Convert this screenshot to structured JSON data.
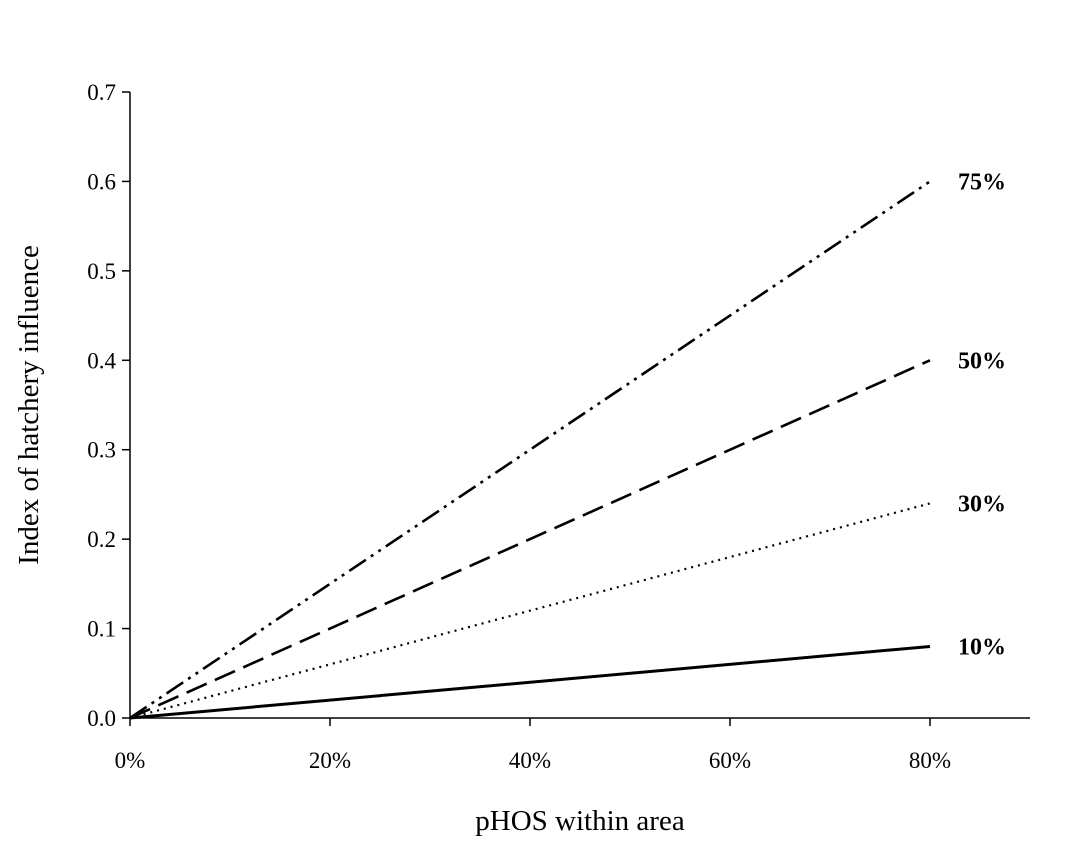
{
  "chart_data": {
    "type": "line",
    "title": "",
    "xlabel": "pHOS within area",
    "ylabel": "Index of hatchery influence",
    "x": [
      0,
      0.8
    ],
    "xlim": [
      0,
      0.9
    ],
    "ylim": [
      0,
      0.7
    ],
    "x_ticks": [
      0,
      0.2,
      0.4,
      0.6,
      0.8
    ],
    "x_tick_labels": [
      "0%",
      "20%",
      "40%",
      "60%",
      "80%"
    ],
    "y_ticks": [
      0,
      0.1,
      0.2,
      0.3,
      0.4,
      0.5,
      0.6,
      0.7
    ],
    "y_tick_labels": [
      "0.0",
      "0.1",
      "0.2",
      "0.3",
      "0.4",
      "0.5",
      "0.6",
      "0.7"
    ],
    "grid": false,
    "legend": "none",
    "series": [
      {
        "label": "10%",
        "values": [
          0,
          0.08
        ],
        "style": "solid"
      },
      {
        "label": "30%",
        "values": [
          0,
          0.24
        ],
        "style": "dotted"
      },
      {
        "label": "50%",
        "values": [
          0,
          0.4
        ],
        "style": "dashed"
      },
      {
        "label": "75%",
        "values": [
          0,
          0.6
        ],
        "style": "dash-dot-dot"
      }
    ]
  }
}
